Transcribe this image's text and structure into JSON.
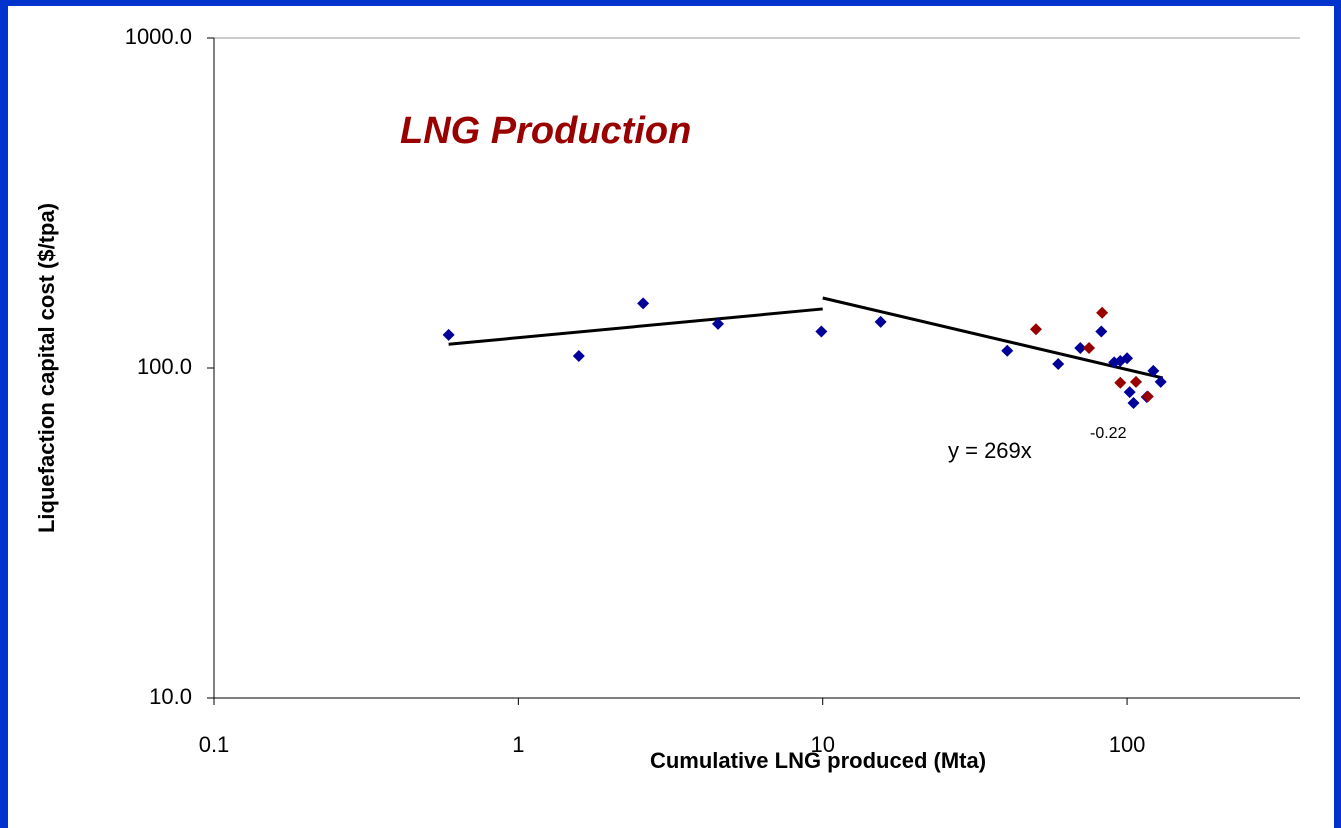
{
  "chart_data": {
    "type": "scatter",
    "annotation": "LNG Production",
    "equation": "y = 269x",
    "equation_exponent": "-0.22",
    "xlabel": "Cumulative LNG produced (Mta)",
    "ylabel": "Liquefaction capital cost ($/tpa)",
    "xscale": "log",
    "yscale": "log",
    "xlim": [
      0.1,
      370
    ],
    "ylim": [
      10,
      1000
    ],
    "xticks": [
      0.1,
      1,
      10,
      100
    ],
    "yticks": [
      {
        "value": 10,
        "label": "10.0"
      },
      {
        "value": 100,
        "label": "100.0"
      },
      {
        "value": 1000,
        "label": "1000.0"
      }
    ],
    "series": [
      {
        "color": "#000099",
        "x": [
          0.59,
          1.58,
          2.57,
          4.53,
          9.9,
          15.5,
          40.4,
          59.4,
          70.2,
          82.3,
          90.7,
          95,
          100,
          102,
          105,
          116,
          122,
          129
        ],
        "values": [
          126,
          108.7,
          157,
          136,
          129,
          138,
          112.8,
          102.8,
          115,
          129,
          104,
          105,
          107,
          84.5,
          78.3,
          81.7,
          98,
          90.8
        ]
      },
      {
        "color": "#990000",
        "x": [
          50.2,
          75,
          82.8,
          95,
          107,
          117
        ],
        "values": [
          131,
          115,
          147,
          90.2,
          90.8,
          82
        ]
      }
    ],
    "trendlines": [
      {
        "color": "#000000",
        "x": [
          0.59,
          10
        ],
        "values": [
          118,
          151
        ]
      },
      {
        "color": "#000000",
        "x": [
          10,
          131
        ],
        "values": [
          163,
          93.3
        ]
      }
    ]
  }
}
